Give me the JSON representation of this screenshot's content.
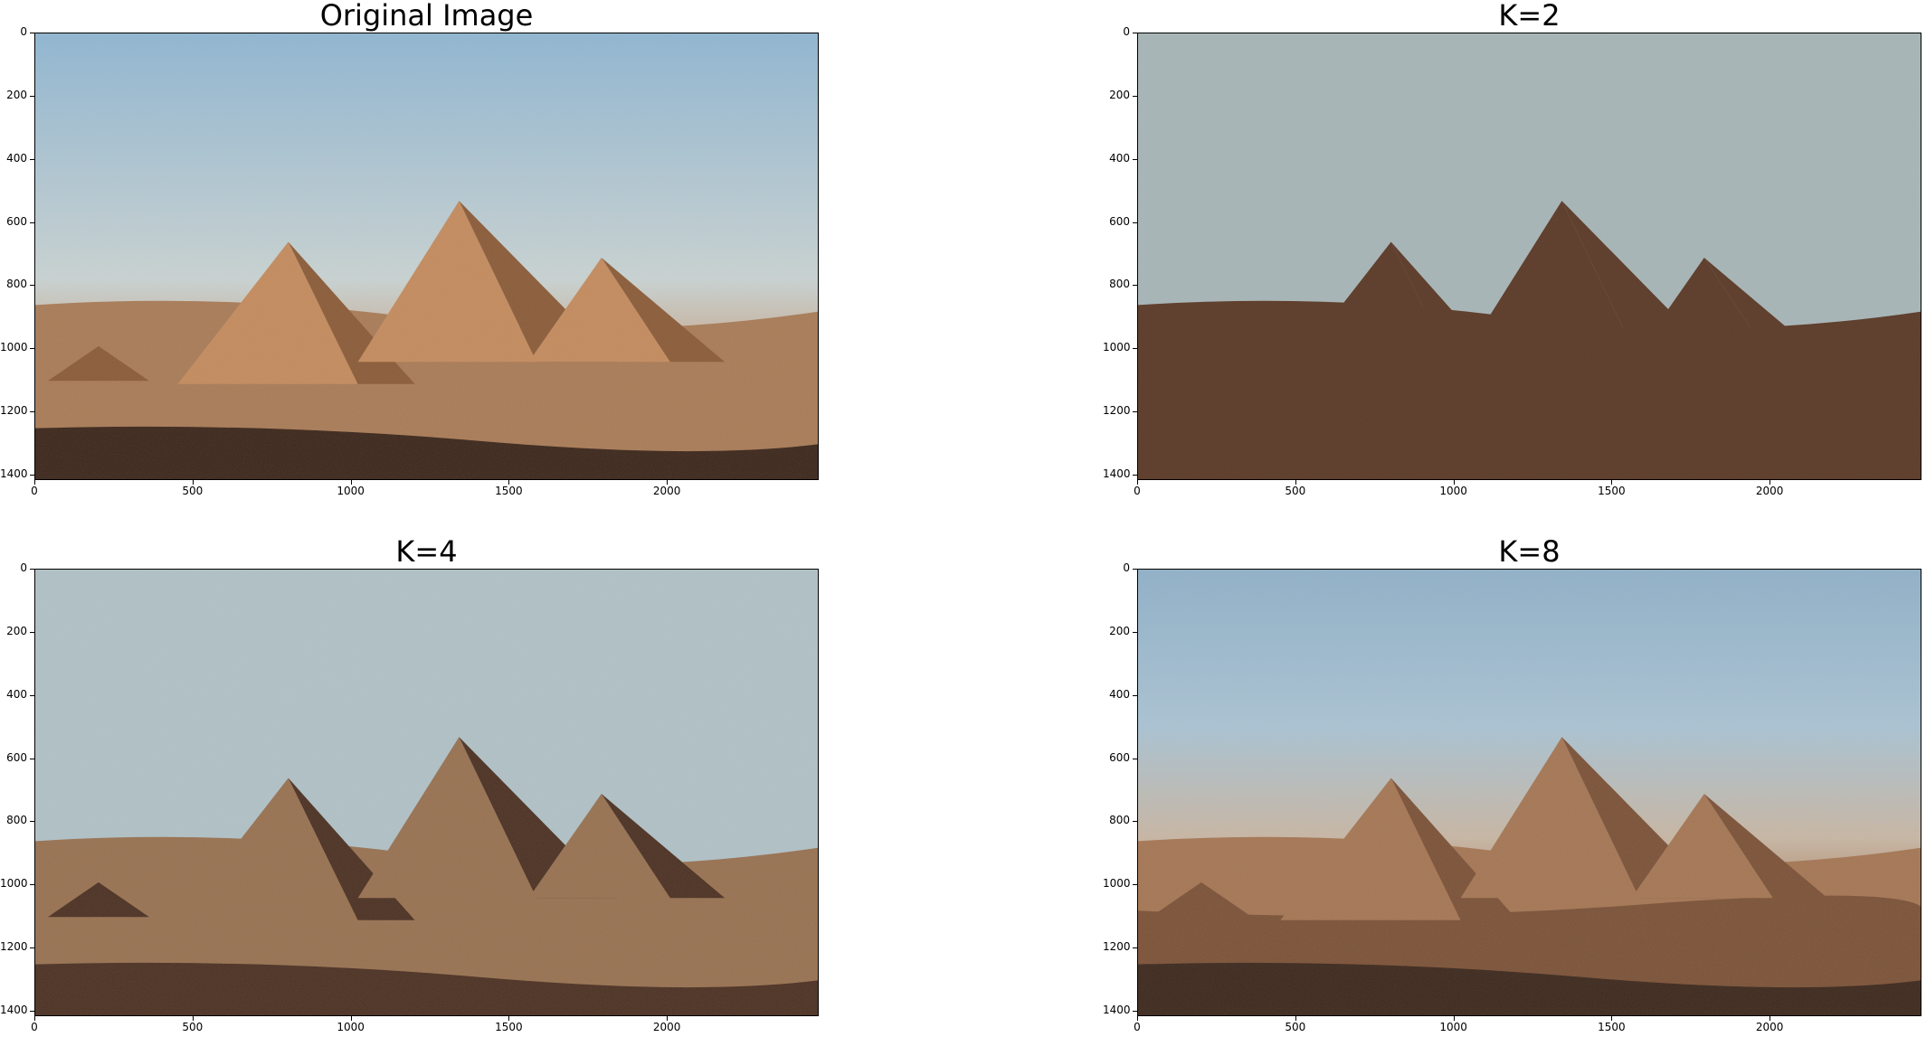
{
  "figure": {
    "panels": [
      {
        "title": "Original Image",
        "variant": "original"
      },
      {
        "title": "K=2",
        "variant": "k2"
      },
      {
        "title": "K=4",
        "variant": "k4"
      },
      {
        "title": "K=8",
        "variant": "k8"
      }
    ],
    "axes": {
      "x_ticks": [
        "0",
        "500",
        "1000",
        "1500",
        "2000"
      ],
      "y_ticks": [
        "0",
        "200",
        "400",
        "600",
        "800",
        "1000",
        "1200",
        "1400"
      ],
      "x_values": [
        0,
        500,
        1000,
        1500,
        2000
      ],
      "y_values": [
        0,
        200,
        400,
        600,
        800,
        1000,
        1200,
        1400
      ],
      "xlim": [
        0,
        2480
      ],
      "ylim": [
        1417,
        0
      ]
    },
    "palettes": {
      "original": {
        "sky_top": "#8fb6d2",
        "sky_mid": "#c9d3d2",
        "sky_low": "#c79a78",
        "pyr_light": "#c48a5c",
        "pyr_dark": "#8a5a36",
        "sand": "#a87a55",
        "shadow": "#3a2418"
      },
      "k2": {
        "sky": "#a8b5b7",
        "ground": "#5e3d2b"
      },
      "k4": {
        "sky": "#b0c1c6",
        "mid": "#97704f",
        "dark": "#4a2f20",
        "light": "#c9b8a5"
      },
      "k8": {
        "sky_top": "#8fb0c8",
        "sky": "#a9c3d3",
        "haze": "#c8b6a3",
        "tan": "#a47552",
        "brown": "#7a5035",
        "dark": "#3b261a",
        "light": "#d2b89a"
      }
    }
  }
}
